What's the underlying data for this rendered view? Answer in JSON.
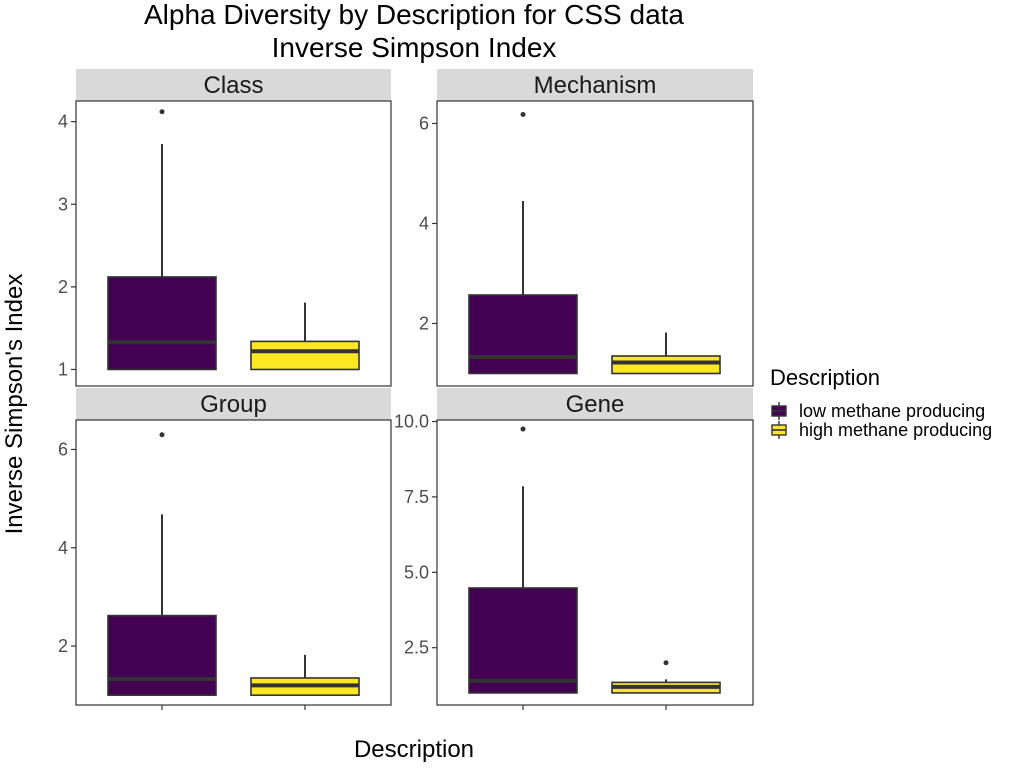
{
  "chart_data": {
    "type": "boxplot",
    "title": "Alpha Diversity by Description for CSS data",
    "subtitle": "Inverse Simpson Index",
    "xlabel": "Description",
    "ylabel": "Inverse Simpson's Index",
    "legend": {
      "title": "Description",
      "position": "right",
      "entries": [
        {
          "label": "low methane producing",
          "color": "#440154"
        },
        {
          "label": "high methane producing",
          "color": "#FDE725"
        }
      ]
    },
    "categories": [
      "low methane producing",
      "high methane producing"
    ],
    "facets": [
      {
        "name": "Class",
        "ylim": [
          0.8,
          4.25
        ],
        "yticks": [
          1,
          2,
          3,
          4
        ],
        "ytick_labels": [
          "1",
          "2",
          "3",
          "4"
        ],
        "boxes": [
          {
            "group": "low methane producing",
            "min": 1.0,
            "q1": 1.0,
            "median": 1.33,
            "q3": 2.12,
            "max": 3.73,
            "outliers": [
              4.12
            ]
          },
          {
            "group": "high methane producing",
            "min": 1.0,
            "q1": 1.0,
            "median": 1.22,
            "q3": 1.34,
            "max": 1.81,
            "outliers": []
          }
        ]
      },
      {
        "name": "Mechanism",
        "ylim": [
          0.75,
          6.45
        ],
        "yticks": [
          2,
          4,
          6
        ],
        "ytick_labels": [
          "2",
          "4",
          "6"
        ],
        "boxes": [
          {
            "group": "low methane producing",
            "min": 1.0,
            "q1": 1.0,
            "median": 1.33,
            "q3": 2.57,
            "max": 4.45,
            "outliers": [
              6.18
            ]
          },
          {
            "group": "high methane producing",
            "min": 1.0,
            "q1": 1.0,
            "median": 1.22,
            "q3": 1.35,
            "max": 1.82,
            "outliers": []
          }
        ]
      },
      {
        "name": "Group",
        "ylim": [
          0.8,
          6.6
        ],
        "yticks": [
          2,
          4,
          6
        ],
        "ytick_labels": [
          "2",
          "4",
          "6"
        ],
        "boxes": [
          {
            "group": "low methane producing",
            "min": 1.0,
            "q1": 1.0,
            "median": 1.33,
            "q3": 2.62,
            "max": 4.68,
            "outliers": [
              6.3
            ]
          },
          {
            "group": "high methane producing",
            "min": 1.0,
            "q1": 1.0,
            "median": 1.2,
            "q3": 1.35,
            "max": 1.82,
            "outliers": []
          }
        ]
      },
      {
        "name": "Gene",
        "ylim": [
          0.6,
          10.05
        ],
        "yticks": [
          2.5,
          5.0,
          7.5,
          10.0
        ],
        "ytick_labels": [
          "2.5",
          "5.0",
          "7.5",
          "10.0"
        ],
        "boxes": [
          {
            "group": "low methane producing",
            "min": 1.0,
            "q1": 1.0,
            "median": 1.4,
            "q3": 4.48,
            "max": 7.85,
            "outliers": [
              9.75
            ]
          },
          {
            "group": "high methane producing",
            "min": 1.0,
            "q1": 1.0,
            "median": 1.2,
            "q3": 1.35,
            "max": 1.45,
            "outliers": [
              2.0
            ]
          }
        ]
      }
    ]
  }
}
